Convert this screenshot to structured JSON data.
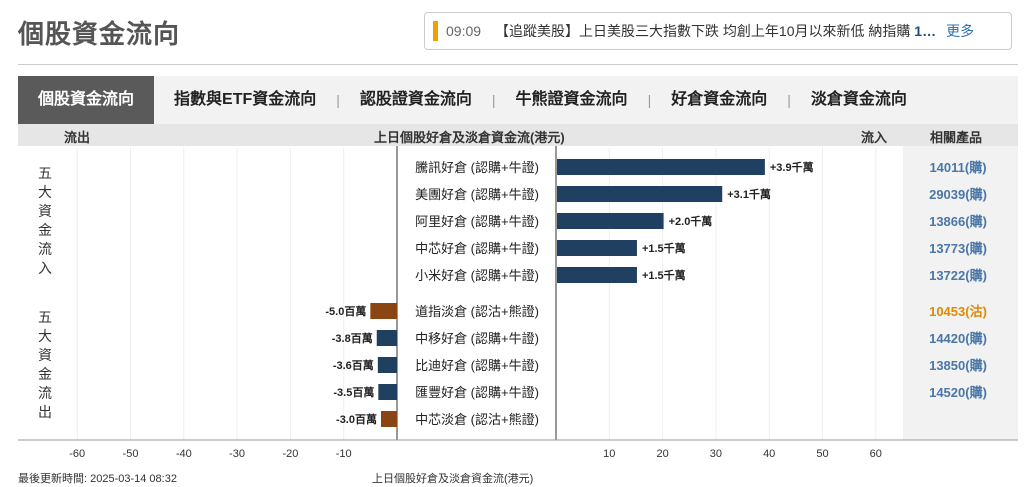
{
  "page_title": "個股資金流向",
  "news": {
    "time": "09:09",
    "tag": "【追蹤美股】",
    "headline_prefix": "上日美股三大指數下跌 均創上年10月以來新低 納指購 ",
    "headline_bold": "1…",
    "more": "更多"
  },
  "tabs": [
    "個股資金流向",
    "指數與ETF資金流向",
    "認股證資金流向",
    "牛熊證資金流向",
    "好倉資金流向",
    "淡倉資金流向"
  ],
  "header": {
    "outflow": "流出",
    "center": "上日個股好倉及淡倉資金流(港元)",
    "inflow": "流入",
    "products": "相關產品"
  },
  "group_labels": {
    "inflow": [
      "五",
      "大",
      "資",
      "金",
      "流",
      "入"
    ],
    "outflow": [
      "五",
      "大",
      "資",
      "金",
      "流",
      "出"
    ]
  },
  "colors": {
    "long": "#1f4060",
    "short": "#8b4513",
    "link_blue": "#4a76a8",
    "link_orange": "#e08a00"
  },
  "chart_data": {
    "type": "bar",
    "orientation": "horizontal",
    "title": "上日個股好倉及淡倉資金流(港元)",
    "unit": "百萬",
    "xlim": [
      -65,
      65
    ],
    "ticks_left": [
      -60,
      -50,
      -40,
      -30,
      -20,
      -10
    ],
    "ticks_right": [
      10,
      20,
      30,
      40,
      50,
      60
    ],
    "inflow": [
      {
        "category": "騰訊好倉 (認購+牛證)",
        "value": 39,
        "label": "+3.9千萬",
        "kind": "long",
        "product": "14011(購)"
      },
      {
        "category": "美團好倉 (認購+牛證)",
        "value": 31,
        "label": "+3.1千萬",
        "kind": "long",
        "product": "29039(購)"
      },
      {
        "category": "阿里好倉 (認購+牛證)",
        "value": 20,
        "label": "+2.0千萬",
        "kind": "long",
        "product": "13866(購)"
      },
      {
        "category": "中芯好倉 (認購+牛證)",
        "value": 15,
        "label": "+1.5千萬",
        "kind": "long",
        "product": "13773(購)"
      },
      {
        "category": "小米好倉 (認購+牛證)",
        "value": 15,
        "label": "+1.5千萬",
        "kind": "long",
        "product": "13722(購)"
      }
    ],
    "outflow": [
      {
        "category": "道指淡倉 (認沽+熊證)",
        "value": -5.0,
        "label": "-5.0百萬",
        "kind": "short",
        "product": "10453(沽)"
      },
      {
        "category": "中移好倉 (認購+牛證)",
        "value": -3.8,
        "label": "-3.8百萬",
        "kind": "long",
        "product": "14420(購)"
      },
      {
        "category": "比迪好倉 (認購+牛證)",
        "value": -3.6,
        "label": "-3.6百萬",
        "kind": "long",
        "product": "13850(購)"
      },
      {
        "category": "匯豐好倉 (認購+牛證)",
        "value": -3.5,
        "label": "-3.5百萬",
        "kind": "long",
        "product": "14520(購)"
      },
      {
        "category": "中芯淡倉 (認沽+熊證)",
        "value": -3.0,
        "label": "-3.0百萬",
        "kind": "short",
        "product": ""
      }
    ]
  },
  "footer": {
    "updated": "最後更新時間: 2025-03-14 08:32",
    "caption": "上日個股好倉及淡倉資金流(港元)"
  }
}
